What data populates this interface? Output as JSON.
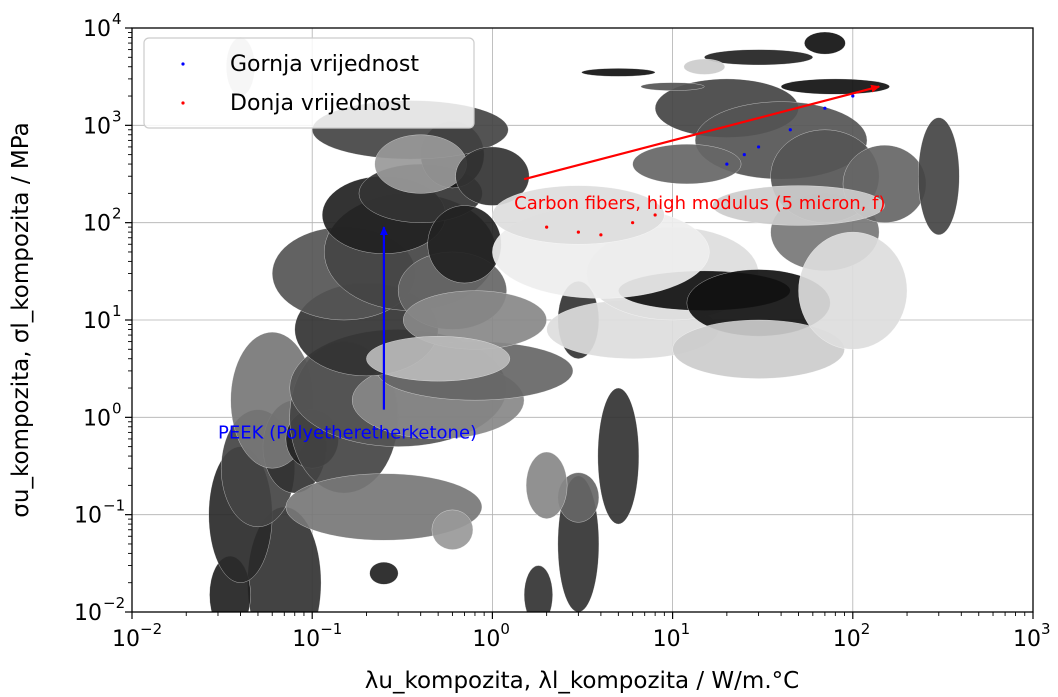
{
  "chart_data": {
    "type": "scatter",
    "title": "",
    "xlabel": "λu_kompozita, λl_kompozita / W/m.°C",
    "ylabel": "σu_kompozita, σl_kompozita / MPa",
    "xscale": "log",
    "yscale": "log",
    "xlim": [
      0.01,
      1000
    ],
    "ylim": [
      0.01,
      10000
    ],
    "x_ticks": [
      {
        "base": "10",
        "exp": "−2",
        "value": 0.01
      },
      {
        "base": "10",
        "exp": "−1",
        "value": 0.1
      },
      {
        "base": "10",
        "exp": "0",
        "value": 1
      },
      {
        "base": "10",
        "exp": "1",
        "value": 10
      },
      {
        "base": "10",
        "exp": "2",
        "value": 100
      },
      {
        "base": "10",
        "exp": "3",
        "value": 1000
      }
    ],
    "y_ticks": [
      {
        "base": "10",
        "exp": "−2",
        "value": 0.01
      },
      {
        "base": "10",
        "exp": "−1",
        "value": 0.1
      },
      {
        "base": "10",
        "exp": "0",
        "value": 1
      },
      {
        "base": "10",
        "exp": "1",
        "value": 10
      },
      {
        "base": "10",
        "exp": "2",
        "value": 100
      },
      {
        "base": "10",
        "exp": "3",
        "value": 1000
      },
      {
        "base": "10",
        "exp": "4",
        "value": 10000
      }
    ],
    "grid": true,
    "legend_position": "top-left",
    "series": [
      {
        "name": "Gornja vrijednost",
        "color": "#0000ff",
        "marker": "dot",
        "points": [
          [
            20,
            400
          ],
          [
            30,
            600
          ],
          [
            45,
            900
          ],
          [
            70,
            1500
          ],
          [
            100,
            2000
          ],
          [
            25,
            500
          ]
        ]
      },
      {
        "name": "Donja vrijednost",
        "color": "#ff0000",
        "marker": "dot",
        "points": [
          [
            2,
            90
          ],
          [
            3,
            80
          ],
          [
            4,
            75
          ],
          [
            6,
            100
          ],
          [
            8,
            120
          ]
        ]
      }
    ],
    "annotations": [
      {
        "text": "Carbon fibers, high modulus (5 micron, f)",
        "color": "#ff0000",
        "text_at": [
          1.5,
          160
        ],
        "arrow_from": [
          1.5,
          280
        ],
        "arrow_to": [
          140,
          2500
        ]
      },
      {
        "text": "PEEK (Polyetheretherketone)",
        "color": "#0000ff",
        "text_at": [
          0.03,
          0.7
        ],
        "arrow_from": [
          0.25,
          1.2
        ],
        "arrow_to": [
          0.25,
          90
        ]
      }
    ],
    "background_ellipses": [
      {
        "x": 0.07,
        "y": 0.02,
        "wx": 1.6,
        "hy": 6,
        "shade": "#333"
      },
      {
        "x": 0.035,
        "y": 0.015,
        "wx": 1.3,
        "hy": 2.5,
        "shade": "#222"
      },
      {
        "x": 0.04,
        "y": 0.1,
        "wx": 1.5,
        "hy": 5,
        "shade": "#2a2a2a"
      },
      {
        "x": 0.05,
        "y": 0.3,
        "wx": 1.6,
        "hy": 4,
        "shade": "#444"
      },
      {
        "x": 0.08,
        "y": 0.5,
        "wx": 1.5,
        "hy": 3,
        "shade": "#333"
      },
      {
        "x": 0.06,
        "y": 1.5,
        "wx": 1.7,
        "hy": 5,
        "shade": "#777"
      },
      {
        "x": 0.1,
        "y": 0.6,
        "wx": 1.4,
        "hy": 2,
        "shade": "#222"
      },
      {
        "x": 0.15,
        "y": 1,
        "wx": 2,
        "hy": 6,
        "shade": "#444"
      },
      {
        "x": 0.25,
        "y": 0.12,
        "wx": 3.5,
        "hy": 2.2,
        "shade": "#777"
      },
      {
        "x": 0.6,
        "y": 0.07,
        "wx": 1.3,
        "hy": 1.6,
        "shade": "#999"
      },
      {
        "x": 0.25,
        "y": 0.025,
        "wx": 1.2,
        "hy": 1.3,
        "shade": "#222"
      },
      {
        "x": 0.3,
        "y": 2,
        "wx": 4,
        "hy": 4,
        "shade": "#555"
      },
      {
        "x": 0.5,
        "y": 1.5,
        "wx": 3,
        "hy": 2.5,
        "shade": "#888"
      },
      {
        "x": 0.8,
        "y": 3,
        "wx": 3.5,
        "hy": 2,
        "shade": "#666"
      },
      {
        "x": 0.2,
        "y": 8,
        "wx": 2.5,
        "hy": 3,
        "shade": "#333"
      },
      {
        "x": 0.15,
        "y": 30,
        "wx": 2.5,
        "hy": 3,
        "shade": "#555"
      },
      {
        "x": 0.35,
        "y": 50,
        "wx": 3,
        "hy": 4,
        "shade": "#444"
      },
      {
        "x": 0.25,
        "y": 120,
        "wx": 2.2,
        "hy": 2.5,
        "shade": "#222"
      },
      {
        "x": 0.4,
        "y": 200,
        "wx": 2.2,
        "hy": 2,
        "shade": "#333"
      },
      {
        "x": 0.6,
        "y": 500,
        "wx": 1.5,
        "hy": 2.2,
        "shade": "#1a1a1a"
      },
      {
        "x": 0.35,
        "y": 900,
        "wx": 3.5,
        "hy": 2,
        "shade": "#444"
      },
      {
        "x": 0.6,
        "y": 20,
        "wx": 2,
        "hy": 2.5,
        "shade": "#666"
      },
      {
        "x": 0.8,
        "y": 10,
        "wx": 2.5,
        "hy": 2,
        "shade": "#888"
      },
      {
        "x": 0.4,
        "y": 400,
        "wx": 1.8,
        "hy": 2,
        "shade": "#999"
      },
      {
        "x": 1,
        "y": 300,
        "wx": 1.6,
        "hy": 2,
        "shade": "#333"
      },
      {
        "x": 0.7,
        "y": 60,
        "wx": 1.6,
        "hy": 2.5,
        "shade": "#222"
      },
      {
        "x": 0.5,
        "y": 4,
        "wx": 2.5,
        "hy": 1.7,
        "shade": "#bbb"
      },
      {
        "x": 1.8,
        "y": 0.015,
        "wx": 1.2,
        "hy": 2,
        "shade": "#333"
      },
      {
        "x": 3,
        "y": 0.05,
        "wx": 1.3,
        "hy": 5,
        "shade": "#333"
      },
      {
        "x": 5,
        "y": 0.4,
        "wx": 1.3,
        "hy": 5,
        "shade": "#333"
      },
      {
        "x": 3,
        "y": 0.15,
        "wx": 1.3,
        "hy": 1.8,
        "shade": "#666"
      },
      {
        "x": 2,
        "y": 0.2,
        "wx": 1.3,
        "hy": 2.2,
        "shade": "#888"
      },
      {
        "x": 3,
        "y": 10,
        "wx": 1.3,
        "hy": 2.5,
        "shade": "#333"
      },
      {
        "x": 6,
        "y": 8,
        "wx": 3,
        "hy": 2,
        "shade": "#ddd"
      },
      {
        "x": 10,
        "y": 30,
        "wx": 3,
        "hy": 3,
        "shade": "#ddd"
      },
      {
        "x": 15,
        "y": 20,
        "wx": 3,
        "hy": 1.6,
        "shade": "#111"
      },
      {
        "x": 30,
        "y": 15,
        "wx": 2.5,
        "hy": 2.2,
        "shade": "#111"
      },
      {
        "x": 30,
        "y": 5,
        "wx": 3,
        "hy": 2,
        "shade": "#ccc"
      },
      {
        "x": 4,
        "y": 50,
        "wx": 4,
        "hy": 3,
        "shade": "#eee"
      },
      {
        "x": 3,
        "y": 120,
        "wx": 3,
        "hy": 2,
        "shade": "#ddd"
      },
      {
        "x": 70,
        "y": 80,
        "wx": 2,
        "hy": 2.5,
        "shade": "#777"
      },
      {
        "x": 100,
        "y": 20,
        "wx": 2,
        "hy": 4,
        "shade": "#ddd"
      },
      {
        "x": 20,
        "y": 1500,
        "wx": 2.5,
        "hy": 2,
        "shade": "#444"
      },
      {
        "x": 40,
        "y": 700,
        "wx": 3,
        "hy": 2.5,
        "shade": "#555"
      },
      {
        "x": 70,
        "y": 300,
        "wx": 2,
        "hy": 3,
        "shade": "#555"
      },
      {
        "x": 150,
        "y": 250,
        "wx": 1.7,
        "hy": 2.5,
        "shade": "#666"
      },
      {
        "x": 50,
        "y": 150,
        "wx": 3,
        "hy": 1.6,
        "shade": "#ccc"
      },
      {
        "x": 70,
        "y": 7000,
        "wx": 1.3,
        "hy": 1.3,
        "shade": "#111"
      },
      {
        "x": 30,
        "y": 5000,
        "wx": 2,
        "hy": 1.2,
        "shade": "#222"
      },
      {
        "x": 80,
        "y": 2500,
        "wx": 2,
        "hy": 1.2,
        "shade": "#111"
      },
      {
        "x": 15,
        "y": 4000,
        "wx": 1.3,
        "hy": 1.2,
        "shade": "#ccc"
      },
      {
        "x": 5,
        "y": 3500,
        "wx": 1.6,
        "hy": 1.1,
        "shade": "#111"
      },
      {
        "x": 10,
        "y": 2500,
        "wx": 1.5,
        "hy": 1.1,
        "shade": "#555"
      },
      {
        "x": 12,
        "y": 400,
        "wx": 2,
        "hy": 1.6,
        "shade": "#666"
      },
      {
        "x": 300,
        "y": 300,
        "wx": 1.3,
        "hy": 4,
        "shade": "#444"
      },
      {
        "x": 0.04,
        "y": 4000,
        "wx": 1.2,
        "hy": 2,
        "shade": "#bbb"
      }
    ]
  }
}
